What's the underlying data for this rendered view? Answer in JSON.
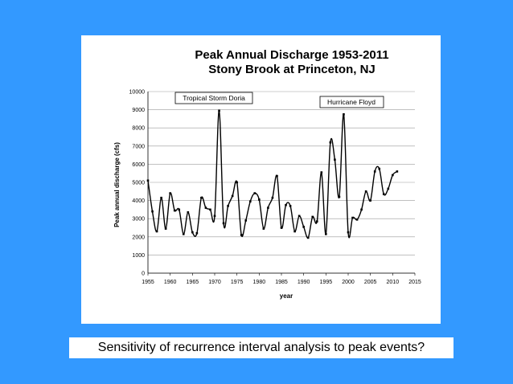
{
  "caption": "Sensitivity of recurrence interval analysis to peak events?",
  "colors": {
    "background": "#3399ff",
    "panel": "#ffffff",
    "line": "#000000"
  },
  "chart_data": {
    "type": "line",
    "title": "Peak Annual Discharge  1953-2011",
    "subtitle": "Stony Brook at Princeton, NJ",
    "xlabel": "year",
    "ylabel": "Peak annual discharge (cfs)",
    "xlim": [
      1955,
      2015
    ],
    "ylim": [
      0,
      10000
    ],
    "x_ticks": [
      1955,
      1960,
      1965,
      1970,
      1975,
      1980,
      1985,
      1990,
      1995,
      2000,
      2005,
      2010,
      2015
    ],
    "y_ticks": [
      0,
      1000,
      2000,
      3000,
      4000,
      5000,
      6000,
      7000,
      8000,
      9000,
      10000
    ],
    "grid": "horizontal",
    "legend": "none",
    "annotations": [
      {
        "text": "Tropical Storm Doria",
        "x": 1971,
        "y": 8950
      },
      {
        "text": "Hurricane Floyd",
        "x": 1999,
        "y": 8750
      }
    ],
    "series": [
      {
        "x": [
          1955,
          1956,
          1957,
          1958,
          1959,
          1960,
          1961,
          1962,
          1963,
          1964,
          1965,
          1966,
          1967,
          1968,
          1969,
          1970,
          1971,
          1972,
          1973,
          1974,
          1975,
          1976,
          1977,
          1978,
          1979,
          1980,
          1981,
          1982,
          1983,
          1984,
          1985,
          1986,
          1987,
          1988,
          1989,
          1990,
          1991,
          1992,
          1993,
          1994,
          1995,
          1996,
          1997,
          1998,
          1999,
          2000,
          2001,
          2002,
          2003,
          2004,
          2005,
          2006,
          2007,
          2008,
          2009,
          2010,
          2011
        ],
        "values": [
          5100,
          3400,
          2300,
          4150,
          2450,
          4400,
          3450,
          3500,
          2150,
          3350,
          2250,
          2200,
          4150,
          3600,
          3500,
          3150,
          8950,
          2750,
          3700,
          4250,
          5000,
          2100,
          2900,
          3950,
          4400,
          4050,
          2450,
          3600,
          4150,
          5350,
          2500,
          3750,
          3700,
          2300,
          3150,
          2550,
          1950,
          3100,
          2850,
          5550,
          2150,
          7200,
          6250,
          4200,
          8750,
          2250,
          3050,
          2950,
          3500,
          4500,
          4000,
          5600,
          5750,
          4350,
          4650,
          5400,
          5600
        ]
      }
    ]
  }
}
